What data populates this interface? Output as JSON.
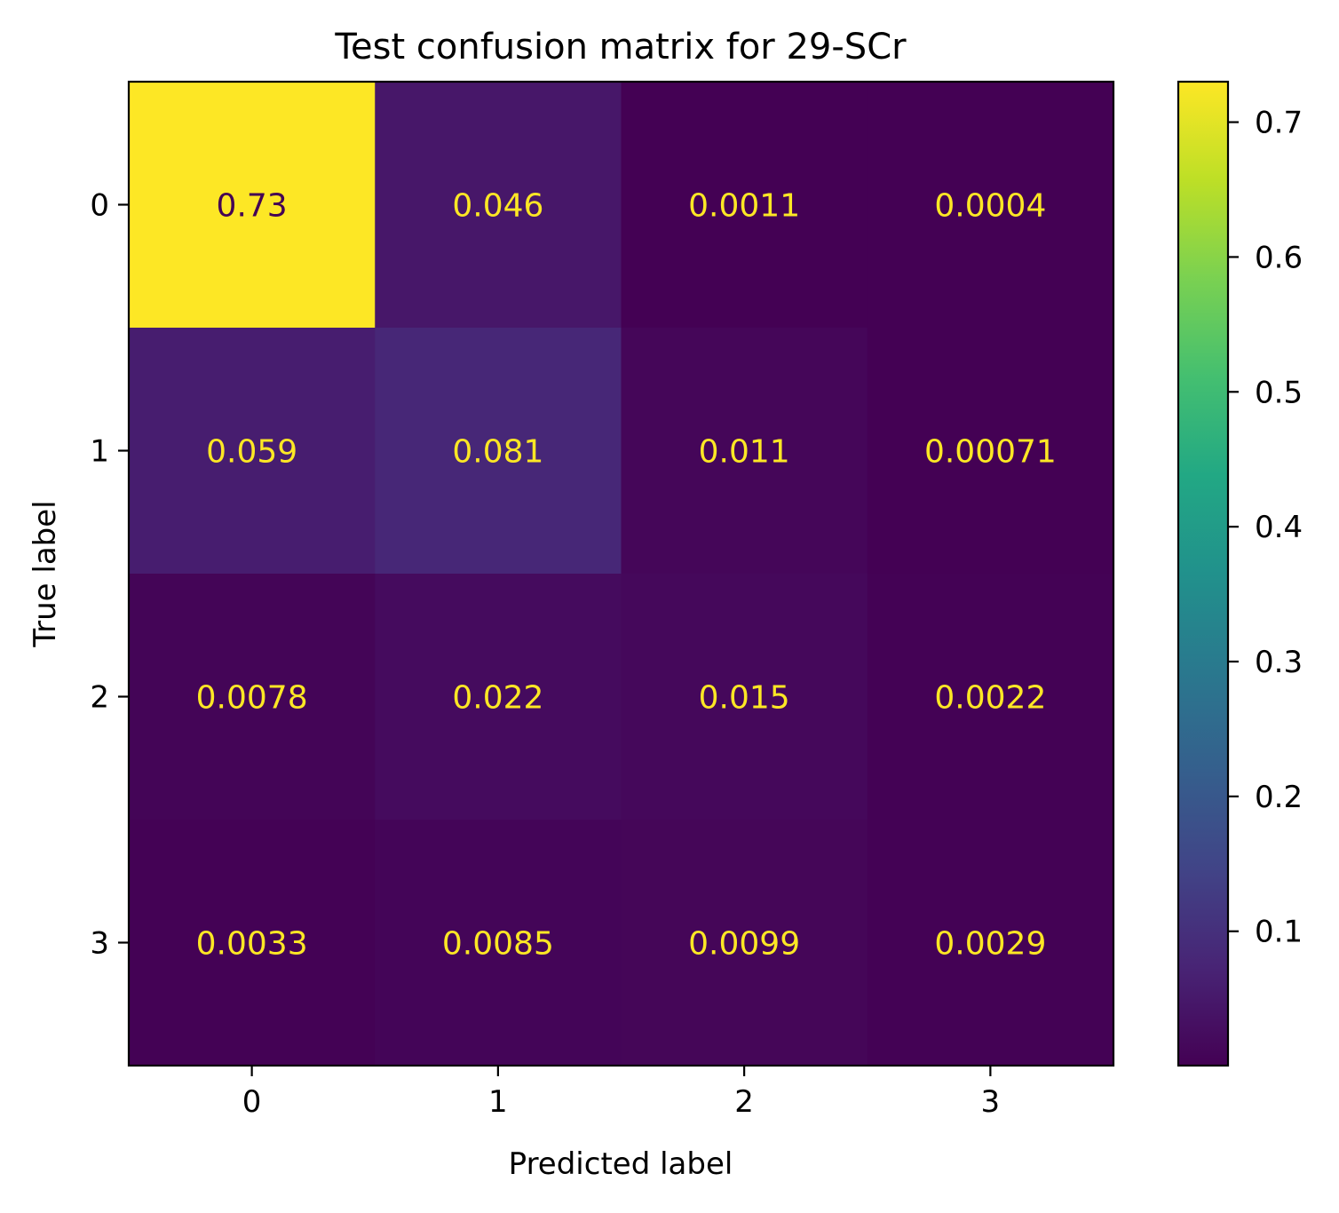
{
  "chart_data": {
    "type": "heatmap",
    "title": "Test confusion matrix for 29-SCr",
    "xlabel": "Predicted label",
    "ylabel": "True label",
    "x_categories": [
      "0",
      "1",
      "2",
      "3"
    ],
    "y_categories": [
      "0",
      "1",
      "2",
      "3"
    ],
    "values": [
      [
        0.73,
        0.046,
        0.0011,
        0.0004
      ],
      [
        0.059,
        0.081,
        0.011,
        0.00071
      ],
      [
        0.0078,
        0.022,
        0.015,
        0.0022
      ],
      [
        0.0033,
        0.0085,
        0.0099,
        0.0029
      ]
    ],
    "cell_labels": [
      [
        "0.73",
        "0.046",
        "0.0011",
        "0.0004"
      ],
      [
        "0.059",
        "0.081",
        "0.011",
        "0.00071"
      ],
      [
        "0.0078",
        "0.022",
        "0.015",
        "0.0022"
      ],
      [
        "0.0033",
        "0.0085",
        "0.0099",
        "0.0029"
      ]
    ],
    "colormap": "viridis",
    "colorbar": {
      "range": [
        0.0004,
        0.73
      ],
      "ticks": [
        0.1,
        0.2,
        0.3,
        0.4,
        0.5,
        0.6,
        0.7
      ],
      "tick_labels": [
        "0.1",
        "0.2",
        "0.3",
        "0.4",
        "0.5",
        "0.6",
        "0.7"
      ]
    },
    "colors": {
      "text_on_dark": "#fde725",
      "text_on_light": "#440154"
    },
    "grid": false
  }
}
